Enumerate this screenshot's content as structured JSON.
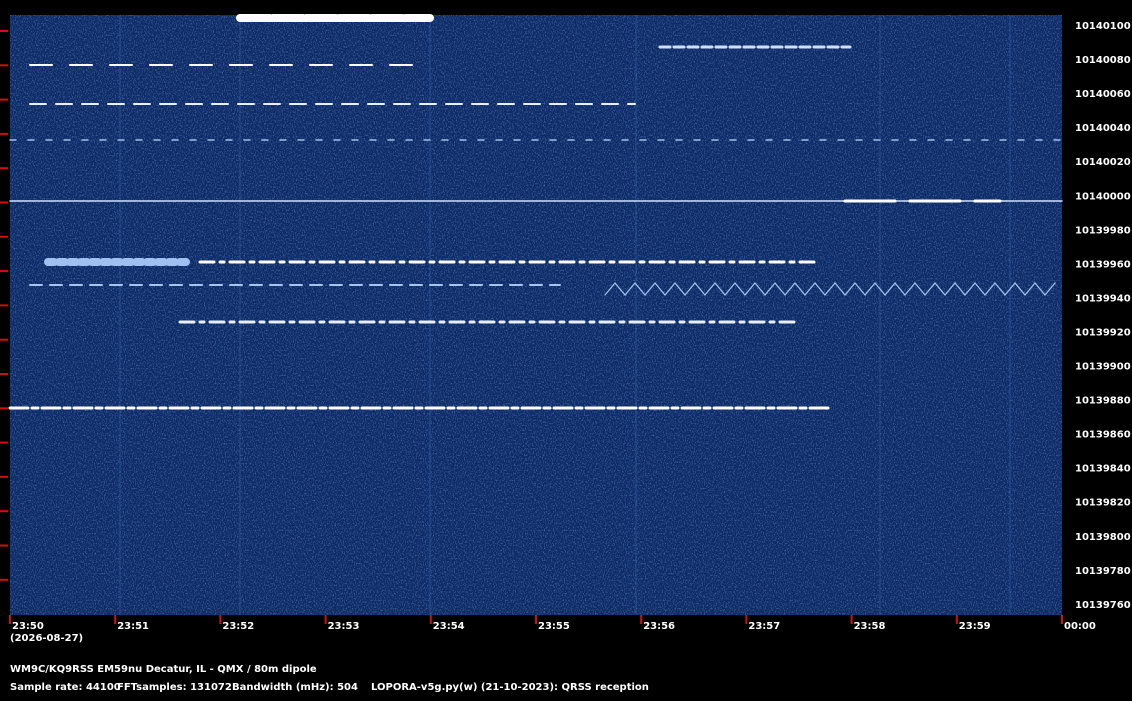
{
  "axis": {
    "freq_labels": [
      "10140100",
      "10140080",
      "10140060",
      "10140040",
      "10140020",
      "10140000",
      "10139980",
      "10139960",
      "10139940",
      "10139920",
      "10139900",
      "10139880",
      "10139860",
      "10139840",
      "10139820",
      "10139800",
      "10139780",
      "10139760"
    ],
    "time_labels": [
      "23:50",
      "23:51",
      "23:52",
      "23:53",
      "23:54",
      "23:55",
      "23:56",
      "23:57",
      "23:58",
      "23:59",
      "00:00"
    ],
    "date": "(2026-08-27)"
  },
  "footer": {
    "station": "WM9C/KQ9RSS EM59nu Decatur, IL - QMX / 80m dipole",
    "sample_rate": "Sample rate: 44100",
    "fft": "FFTsamples: 131072",
    "bandwidth": "Bandwidth (mHz): 504",
    "software": "LOPORA-v5g.py(w) (21-10-2023): QRSS reception"
  }
}
